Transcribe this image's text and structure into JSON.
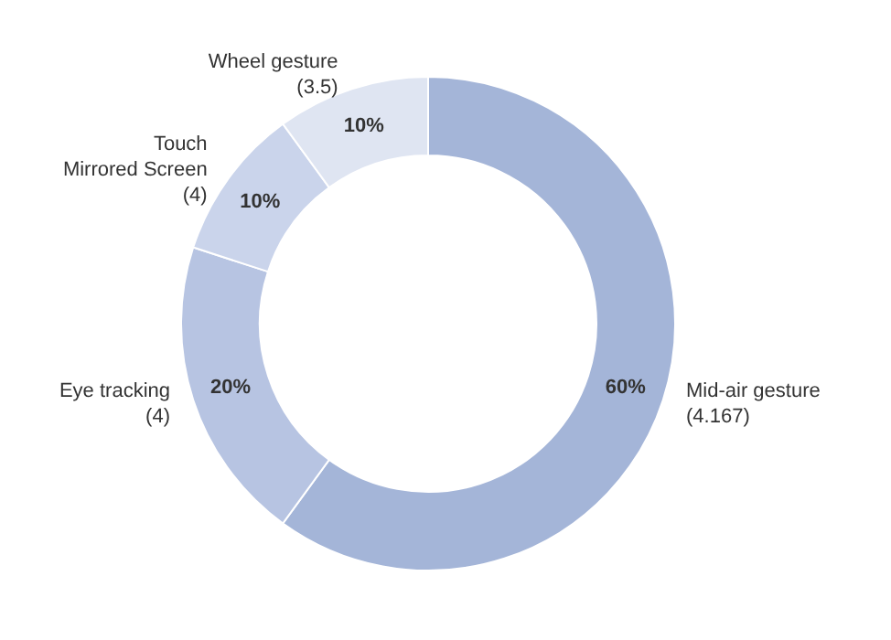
{
  "chart_data": {
    "type": "donut",
    "categories": [
      "Mid-air gesture\n(4.167)",
      "Eye tracking\n(4)",
      "Touch\nMirrored Screen\n(4)",
      "Wheel gesture\n(3.5)"
    ],
    "values": [
      60,
      20,
      10,
      10
    ],
    "colors": [
      "#a4b5d8",
      "#b7c4e2",
      "#cad4eb",
      "#dfe5f2"
    ],
    "value_labels": [
      "60%",
      "20%",
      "10%",
      "10%"
    ],
    "legend": false
  }
}
